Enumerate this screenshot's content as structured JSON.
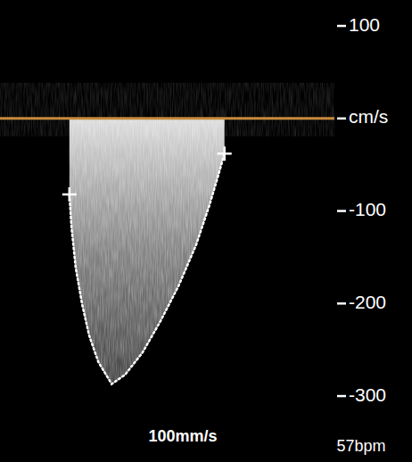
{
  "chart_data": {
    "type": "line",
    "x": [
      166,
      171,
      181,
      196,
      213,
      235,
      267,
      299,
      341,
      384,
      427,
      469,
      501,
      523,
      537
    ],
    "values": [
      -82,
      -118,
      -161,
      -200,
      -234,
      -263,
      -287,
      -277,
      -253,
      -219,
      -181,
      -137,
      -94,
      -60,
      -38
    ],
    "color": "#ffffff",
    "line_style": "dotted",
    "marker": "cross",
    "xlim": [
      0,
      800
    ],
    "ylim": [
      -325,
      128
    ],
    "yticks": [
      100,
      {
        "value": 0,
        "label": "cm/s"
      },
      -100,
      -200,
      -300
    ],
    "tick_labels": "y",
    "grid": false,
    "annotations": [
      "100mm/s",
      "57bpm"
    ]
  }
}
